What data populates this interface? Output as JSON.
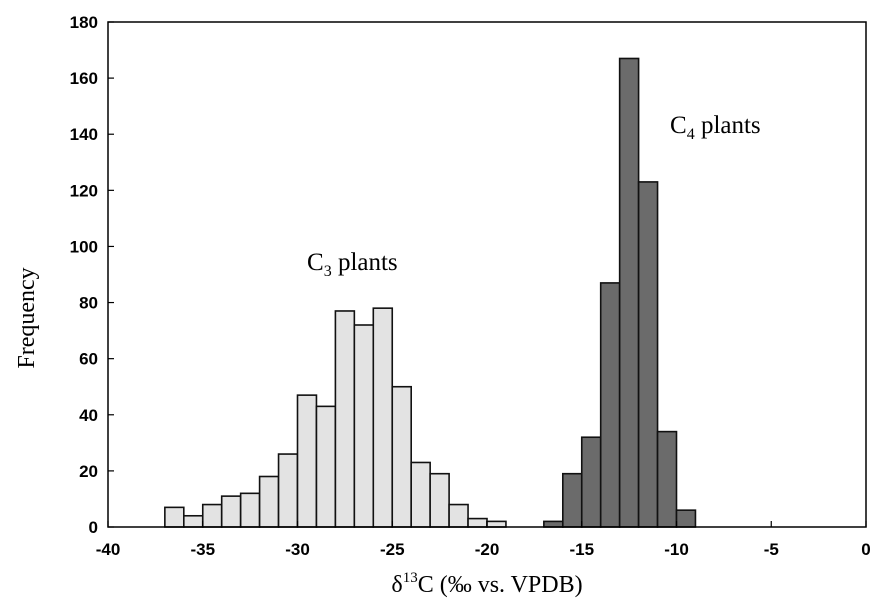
{
  "chart_data": {
    "type": "bar",
    "xlabel_parts": [
      "δ",
      "13",
      "C (‰ vs. VPDB)"
    ],
    "ylabel": "Frequency",
    "xlim": [
      -40,
      0
    ],
    "ylim": [
      0,
      180
    ],
    "xticks": [
      -40,
      -35,
      -30,
      -25,
      -20,
      -15,
      -10,
      -5,
      0
    ],
    "yticks": [
      0,
      20,
      40,
      60,
      80,
      100,
      120,
      140,
      160,
      180
    ],
    "bin_width": 1,
    "series": [
      {
        "label_parts": [
          "C",
          "3",
          " plants"
        ],
        "color": "#e3e3e3",
        "bin_start": [
          -37,
          -36,
          -35,
          -34,
          -33,
          -32,
          -31,
          -30,
          -29,
          -28,
          -27,
          -26,
          -25,
          -24,
          -23,
          -22,
          -21,
          -20,
          -19
        ],
        "values": [
          7,
          4,
          8,
          11,
          12,
          18,
          26,
          47,
          43,
          77,
          72,
          78,
          50,
          23,
          19,
          8,
          3,
          2
        ]
      },
      {
        "label_parts": [
          "C",
          "4",
          " plants"
        ],
        "color": "#6b6b6b",
        "bin_start": [
          -17,
          -16,
          -15,
          -14,
          -13,
          -12,
          -11,
          -10,
          -9
        ],
        "values": [
          2,
          19,
          32,
          87,
          167,
          123,
          34,
          6
        ]
      }
    ]
  }
}
